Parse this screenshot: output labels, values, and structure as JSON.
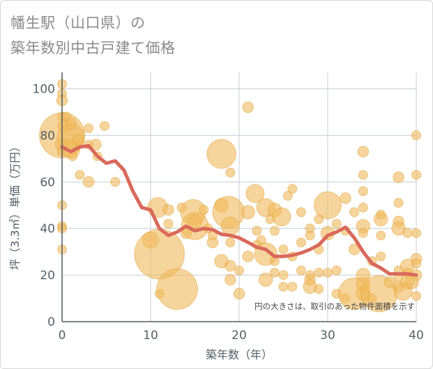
{
  "chart_data": {
    "type": "scatter",
    "title_lines": [
      "幡生駅（山口県）の",
      "築年数別中古戸建て価格"
    ],
    "xlabel": "築年数（年）",
    "ylabel": "坪（3.3㎡）単価（万円）",
    "xlim": [
      0,
      40
    ],
    "ylim": [
      0,
      107
    ],
    "x_ticks": [
      "0",
      "10",
      "20",
      "30",
      "40"
    ],
    "y_ticks": [
      "0",
      "20",
      "40",
      "60",
      "80",
      "100"
    ],
    "grid": true,
    "annotation": "円の大きさは、取引のあった物件面積を示す",
    "colors": {
      "bubble": "#f0b95a",
      "bubble_stroke": "#e0a23c",
      "line": "#d9695a",
      "axis": "#4f5a61",
      "grid": "#c5cdd3"
    },
    "series": [
      {
        "kind": "bubble",
        "points": [
          {
            "x": 0,
            "y": 102,
            "s": 1
          },
          {
            "x": 0,
            "y": 98,
            "s": 1
          },
          {
            "x": 0,
            "y": 95,
            "s": 1.2
          },
          {
            "x": 0,
            "y": 88,
            "s": 1
          },
          {
            "x": 0,
            "y": 80,
            "s": 5
          },
          {
            "x": 0,
            "y": 76,
            "s": 1.5
          },
          {
            "x": 0,
            "y": 73,
            "s": 1
          },
          {
            "x": 0,
            "y": 50,
            "s": 1
          },
          {
            "x": 0,
            "y": 41,
            "s": 1
          },
          {
            "x": 0,
            "y": 40,
            "s": 1
          },
          {
            "x": 0,
            "y": 31,
            "s": 1
          },
          {
            "x": 0.3,
            "y": 84,
            "s": 1.5
          },
          {
            "x": 0.5,
            "y": 88,
            "s": 1
          },
          {
            "x": 1,
            "y": 79,
            "s": 3
          },
          {
            "x": 1,
            "y": 74,
            "s": 2
          },
          {
            "x": 1,
            "y": 85,
            "s": 1.2
          },
          {
            "x": 1.2,
            "y": 71,
            "s": 1
          },
          {
            "x": 1.8,
            "y": 78,
            "s": 1.2
          },
          {
            "x": 2,
            "y": 63,
            "s": 1
          },
          {
            "x": 3,
            "y": 83,
            "s": 1
          },
          {
            "x": 3,
            "y": 60,
            "s": 1.2
          },
          {
            "x": 3,
            "y": 76,
            "s": 1
          },
          {
            "x": 3.8,
            "y": 76,
            "s": 1.2
          },
          {
            "x": 4,
            "y": 71,
            "s": 1
          },
          {
            "x": 4.8,
            "y": 84,
            "s": 1
          },
          {
            "x": 6,
            "y": 60,
            "s": 1
          },
          {
            "x": 10,
            "y": 35,
            "s": 1.8
          },
          {
            "x": 10.8,
            "y": 49,
            "s": 2.2
          },
          {
            "x": 11,
            "y": 29,
            "s": 5.5
          },
          {
            "x": 11,
            "y": 12,
            "s": 1
          },
          {
            "x": 12,
            "y": 48,
            "s": 1.2
          },
          {
            "x": 12,
            "y": 42,
            "s": 1
          },
          {
            "x": 13,
            "y": 14,
            "s": 4.5
          },
          {
            "x": 13.5,
            "y": 49,
            "s": 1
          },
          {
            "x": 14,
            "y": 38,
            "s": 1.2
          },
          {
            "x": 14.8,
            "y": 47,
            "s": 2.8
          },
          {
            "x": 15,
            "y": 41,
            "s": 3
          },
          {
            "x": 15,
            "y": 43,
            "s": 1.5
          },
          {
            "x": 16,
            "y": 48,
            "s": 1
          },
          {
            "x": 16.5,
            "y": 40,
            "s": 1
          },
          {
            "x": 17,
            "y": 34,
            "s": 1.2
          },
          {
            "x": 17,
            "y": 37,
            "s": 1
          },
          {
            "x": 18,
            "y": 26,
            "s": 1.5
          },
          {
            "x": 18,
            "y": 72,
            "s": 3.2
          },
          {
            "x": 18,
            "y": 50,
            "s": 1.5
          },
          {
            "x": 18.8,
            "y": 47,
            "s": 3.5
          },
          {
            "x": 19,
            "y": 41,
            "s": 2
          },
          {
            "x": 19,
            "y": 24,
            "s": 1.2
          },
          {
            "x": 19,
            "y": 34,
            "s": 1
          },
          {
            "x": 19,
            "y": 64,
            "s": 1
          },
          {
            "x": 19,
            "y": 18,
            "s": 1.2
          },
          {
            "x": 20,
            "y": 22,
            "s": 1
          },
          {
            "x": 20,
            "y": 12,
            "s": 1.2
          },
          {
            "x": 21,
            "y": 92,
            "s": 1.2
          },
          {
            "x": 21,
            "y": 47,
            "s": 1.5
          },
          {
            "x": 21,
            "y": 28,
            "s": 1.2
          },
          {
            "x": 21.8,
            "y": 55,
            "s": 2
          },
          {
            "x": 22,
            "y": 39,
            "s": 1
          },
          {
            "x": 22,
            "y": 33,
            "s": 1
          },
          {
            "x": 22.5,
            "y": 35,
            "s": 1
          },
          {
            "x": 23,
            "y": 29,
            "s": 2.5
          },
          {
            "x": 23,
            "y": 49,
            "s": 2
          },
          {
            "x": 23,
            "y": 18,
            "s": 1.5
          },
          {
            "x": 23.5,
            "y": 44,
            "s": 1
          },
          {
            "x": 24,
            "y": 39,
            "s": 1
          },
          {
            "x": 24,
            "y": 48,
            "s": 1.5
          },
          {
            "x": 24,
            "y": 21,
            "s": 1
          },
          {
            "x": 24,
            "y": 26,
            "s": 1
          },
          {
            "x": 24.8,
            "y": 45,
            "s": 2
          },
          {
            "x": 25,
            "y": 31,
            "s": 1
          },
          {
            "x": 25,
            "y": 15,
            "s": 1
          },
          {
            "x": 25,
            "y": 20,
            "s": 1
          },
          {
            "x": 25.5,
            "y": 54,
            "s": 1
          },
          {
            "x": 26,
            "y": 57,
            "s": 1
          },
          {
            "x": 26,
            "y": 28,
            "s": 1
          },
          {
            "x": 26,
            "y": 15,
            "s": 1
          },
          {
            "x": 27,
            "y": 47,
            "s": 1
          },
          {
            "x": 27,
            "y": 34,
            "s": 1
          },
          {
            "x": 27,
            "y": 22,
            "s": 1
          },
          {
            "x": 28,
            "y": 40,
            "s": 1
          },
          {
            "x": 28,
            "y": 37,
            "s": 1
          },
          {
            "x": 28,
            "y": 15,
            "s": 1.5
          },
          {
            "x": 28,
            "y": 18,
            "s": 1.2
          },
          {
            "x": 28,
            "y": 20,
            "s": 1
          },
          {
            "x": 29,
            "y": 31,
            "s": 1
          },
          {
            "x": 29,
            "y": 14,
            "s": 1
          },
          {
            "x": 29,
            "y": 21,
            "s": 1
          },
          {
            "x": 29,
            "y": 44,
            "s": 1
          },
          {
            "x": 30,
            "y": 50,
            "s": 3
          },
          {
            "x": 30,
            "y": 38,
            "s": 1.5
          },
          {
            "x": 30,
            "y": 21,
            "s": 1
          },
          {
            "x": 31,
            "y": 42,
            "s": 1
          },
          {
            "x": 31,
            "y": 22,
            "s": 1
          },
          {
            "x": 31,
            "y": 12,
            "s": 1
          },
          {
            "x": 32,
            "y": 53,
            "s": 1.2
          },
          {
            "x": 32,
            "y": 39,
            "s": 1
          },
          {
            "x": 32,
            "y": 10,
            "s": 1
          },
          {
            "x": 33,
            "y": 12,
            "s": 3.5
          },
          {
            "x": 33,
            "y": 47,
            "s": 1
          },
          {
            "x": 33,
            "y": 31,
            "s": 1.2
          },
          {
            "x": 34,
            "y": 73,
            "s": 1.2
          },
          {
            "x": 34,
            "y": 63,
            "s": 1
          },
          {
            "x": 34,
            "y": 56,
            "s": 1
          },
          {
            "x": 34,
            "y": 49,
            "s": 1
          },
          {
            "x": 34,
            "y": 41,
            "s": 1.5
          },
          {
            "x": 34,
            "y": 38,
            "s": 1
          },
          {
            "x": 34,
            "y": 20,
            "s": 1.5
          },
          {
            "x": 34,
            "y": 16,
            "s": 1.5
          },
          {
            "x": 34,
            "y": 12,
            "s": 1.5
          },
          {
            "x": 35,
            "y": 26,
            "s": 1
          },
          {
            "x": 35,
            "y": 10,
            "s": 1
          },
          {
            "x": 35.8,
            "y": 12,
            "s": 4
          },
          {
            "x": 36,
            "y": 44,
            "s": 1.5
          },
          {
            "x": 36,
            "y": 46,
            "s": 1
          },
          {
            "x": 36,
            "y": 37,
            "s": 1
          },
          {
            "x": 36,
            "y": 28,
            "s": 1
          },
          {
            "x": 37,
            "y": 17,
            "s": 1.2
          },
          {
            "x": 38,
            "y": 62,
            "s": 1.2
          },
          {
            "x": 38,
            "y": 51,
            "s": 1
          },
          {
            "x": 38,
            "y": 43,
            "s": 1.2
          },
          {
            "x": 38,
            "y": 40,
            "s": 1.5
          },
          {
            "x": 38,
            "y": 22,
            "s": 1
          },
          {
            "x": 38,
            "y": 19,
            "s": 1
          },
          {
            "x": 38,
            "y": 15,
            "s": 1.2
          },
          {
            "x": 38.5,
            "y": 13,
            "s": 2
          },
          {
            "x": 39,
            "y": 38,
            "s": 1
          },
          {
            "x": 39,
            "y": 24,
            "s": 1.5
          },
          {
            "x": 39,
            "y": 21,
            "s": 1
          },
          {
            "x": 39,
            "y": 17,
            "s": 1.5
          },
          {
            "x": 39.5,
            "y": 17,
            "s": 1.5
          },
          {
            "x": 40,
            "y": 80,
            "s": 1
          },
          {
            "x": 40,
            "y": 63,
            "s": 1
          },
          {
            "x": 40,
            "y": 38,
            "s": 1
          },
          {
            "x": 40,
            "y": 27,
            "s": 1.2
          },
          {
            "x": 40,
            "y": 25,
            "s": 1
          },
          {
            "x": 40,
            "y": 20,
            "s": 1.2
          },
          {
            "x": 40,
            "y": 11,
            "s": 1
          }
        ]
      },
      {
        "kind": "line",
        "x": [
          0,
          1,
          2,
          3,
          4,
          5,
          6,
          7,
          8,
          9,
          10,
          11,
          12,
          13,
          14,
          15,
          16,
          17,
          18,
          19,
          20,
          21,
          22,
          23,
          24,
          25,
          26,
          27,
          28,
          29,
          30,
          31,
          32,
          33,
          34,
          35,
          36,
          37,
          38,
          39,
          40
        ],
        "y": [
          75,
          73,
          75,
          75.5,
          71,
          68,
          69,
          65,
          56,
          49,
          48,
          40,
          37,
          38.5,
          41,
          39,
          40,
          39.5,
          37.5,
          37,
          36,
          34,
          32,
          31,
          28,
          28,
          28.5,
          29.5,
          31,
          33,
          37,
          38.5,
          40.5,
          36,
          30,
          25,
          23,
          20.5,
          20.5,
          20.5,
          20
        ]
      }
    ]
  }
}
